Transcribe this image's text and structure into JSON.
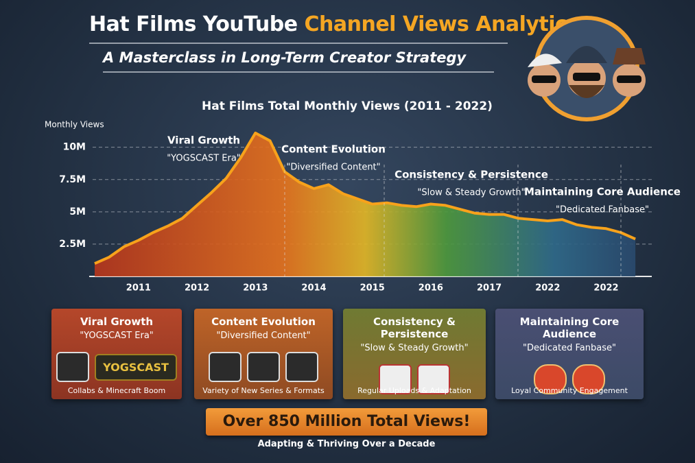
{
  "header": {
    "title_part1": "Hat Films YouTube",
    "title_part2": "Channel Views Analytics:",
    "subtitle": "A Masterclass in Long-Term Creator Strategy"
  },
  "chart_data": {
    "type": "area",
    "title": "Hat Films Total Monthly Views (2011 - 2022)",
    "y_label": "Monthly Views",
    "categories": [
      null,
      null,
      null,
      "2011",
      null,
      null,
      null,
      "2012",
      null,
      null,
      null,
      "2013",
      null,
      null,
      null,
      "2014",
      null,
      null,
      null,
      "2015",
      null,
      null,
      null,
      "2016",
      null,
      null,
      null,
      "2017",
      null,
      null,
      null,
      "2022",
      null,
      null,
      null,
      "2022",
      null,
      null
    ],
    "values": [
      1000000,
      1500000,
      2300000,
      2800000,
      3400000,
      3900000,
      4500000,
      5500000,
      6500000,
      7600000,
      9200000,
      11100000,
      10500000,
      8100000,
      7300000,
      6800000,
      7100000,
      6400000,
      6000000,
      5600000,
      5700000,
      5500000,
      5400000,
      5600000,
      5500000,
      5200000,
      4900000,
      4800000,
      4800000,
      4500000,
      4400000,
      4300000,
      4400000,
      4000000,
      3800000,
      3700000,
      3400000,
      2900000
    ],
    "color": "#f7a21b",
    "ylim": [
      0,
      12000000
    ],
    "yticks": [
      {
        "value": 2500000,
        "label": "2.5M"
      },
      {
        "value": 5000000,
        "label": "5M"
      },
      {
        "value": 7500000,
        "label": "7.5M"
      },
      {
        "value": 10000000,
        "label": "10M"
      }
    ],
    "grid": true,
    "annotations": [
      {
        "text": "Viral Growth",
        "subtext": "\"YOGSCAST Era\""
      },
      {
        "text": "Content Evolution",
        "subtext": "\"Diversified Content\""
      },
      {
        "text": "Consistency & Persistence",
        "subtext": "\"Slow & Steady Growth\""
      },
      {
        "text": "Maintaining Core Audience",
        "subtext": "\"Dedicated Fanbase\""
      }
    ]
  },
  "cards": [
    {
      "title": "Viral Growth",
      "subtitle": "\"YOGSCAST Era\"",
      "badge": "YOGSCAST",
      "bullet": "Collabs & Minecraft Boom"
    },
    {
      "title": "Content Evolution",
      "subtitle": "\"Diversified Content\"",
      "bullet": "Variety of New Series & Formats"
    },
    {
      "title": "Consistency & Persistence",
      "subtitle": "\"Slow & Steady Growth\"",
      "bullet": "Regular Uploads & Adaptation"
    },
    {
      "title": "Maintaining Core Audience",
      "subtitle": "\"Dedicated Fanbase\"",
      "bullet": "Loyal Community Engagement"
    }
  ],
  "footer": {
    "banner": "Over 850 Million Total Views!",
    "subtitle": "Adapting & Thriving Over a Decade"
  }
}
